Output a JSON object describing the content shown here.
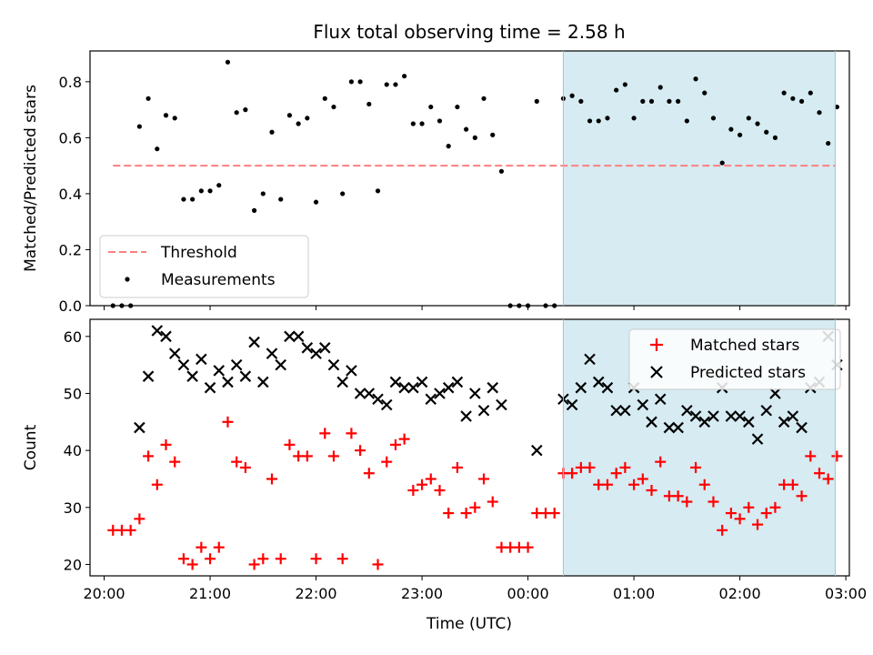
{
  "chart_data": [
    {
      "type": "scatter",
      "title": "Flux total observing time = 2.58 h",
      "xlabel": "",
      "ylabel": "Matched/Predicted stars",
      "ylim": [
        0,
        0.91
      ],
      "yticks": [
        0.0,
        0.2,
        0.4,
        0.6,
        0.8
      ],
      "ytick_labels": [
        "0.0",
        "0.2",
        "0.4",
        "0.6",
        "0.8"
      ],
      "xlim": [
        "19:52",
        "03:02"
      ],
      "shaded_region": {
        "x_start": "00:20",
        "x_end": "02:54",
        "color": "#add8e6"
      },
      "threshold": {
        "name": "Threshold",
        "value": 0.5,
        "x_start": "20:05",
        "x_end": "02:54",
        "color": "#ff7f7f",
        "style": "dashed"
      },
      "legend": {
        "position": "lower left",
        "entries": [
          "Threshold",
          "Measurements"
        ]
      },
      "series": [
        {
          "name": "Measurements",
          "color": "#000000",
          "x": [
            "20:05",
            "20:10",
            "20:15",
            "20:20",
            "20:25",
            "20:30",
            "20:35",
            "20:40",
            "20:45",
            "20:50",
            "20:55",
            "21:00",
            "21:05",
            "21:10",
            "21:15",
            "21:20",
            "21:25",
            "21:30",
            "21:35",
            "21:40",
            "21:45",
            "21:50",
            "21:55",
            "22:00",
            "22:05",
            "22:10",
            "22:15",
            "22:20",
            "22:25",
            "22:30",
            "22:35",
            "22:40",
            "22:45",
            "22:50",
            "22:55",
            "23:00",
            "23:05",
            "23:10",
            "23:15",
            "23:20",
            "23:25",
            "23:30",
            "23:35",
            "23:40",
            "23:45",
            "23:50",
            "23:55",
            "00:00",
            "00:05",
            "00:10",
            "00:15",
            "00:20",
            "00:25",
            "00:30",
            "00:35",
            "00:40",
            "00:45",
            "00:50",
            "00:55",
            "01:00",
            "01:05",
            "01:10",
            "01:15",
            "01:20",
            "01:25",
            "01:30",
            "01:35",
            "01:40",
            "01:45",
            "01:50",
            "01:55",
            "02:00",
            "02:05",
            "02:10",
            "02:15",
            "02:20",
            "02:25",
            "02:30",
            "02:35",
            "02:40",
            "02:45",
            "02:50",
            "02:55"
          ],
          "y": [
            0.0,
            0.0,
            0.0,
            0.64,
            0.74,
            0.56,
            0.68,
            0.67,
            0.38,
            0.38,
            0.41,
            0.41,
            0.43,
            0.87,
            0.69,
            0.7,
            0.34,
            0.4,
            0.62,
            0.38,
            0.68,
            0.65,
            0.67,
            0.37,
            0.74,
            0.71,
            0.4,
            0.8,
            0.8,
            0.72,
            0.41,
            0.79,
            0.79,
            0.82,
            0.65,
            0.65,
            0.71,
            0.66,
            0.57,
            0.71,
            0.63,
            0.6,
            0.74,
            0.61,
            0.48,
            0.0,
            0.0,
            0.0,
            0.73,
            0.0,
            0.0,
            0.74,
            0.75,
            0.73,
            0.66,
            0.66,
            0.67,
            0.77,
            0.79,
            0.67,
            0.73,
            0.73,
            0.78,
            0.73,
            0.73,
            0.66,
            0.81,
            0.76,
            0.67,
            0.51,
            0.63,
            0.61,
            0.67,
            0.65,
            0.62,
            0.6,
            0.76,
            0.74,
            0.73,
            0.76,
            0.69,
            0.58,
            0.71
          ]
        }
      ]
    },
    {
      "type": "scatter",
      "title": "",
      "xlabel": "Time (UTC)",
      "ylabel": "Count",
      "ylim": [
        18,
        63
      ],
      "yticks": [
        20,
        30,
        40,
        50,
        60
      ],
      "ytick_labels": [
        "20",
        "30",
        "40",
        "50",
        "60"
      ],
      "xlim": [
        "19:52",
        "03:02"
      ],
      "xticks": [
        "20:00",
        "21:00",
        "22:00",
        "23:00",
        "00:00",
        "01:00",
        "02:00",
        "03:00"
      ],
      "shaded_region": {
        "x_start": "00:20",
        "x_end": "02:54",
        "color": "#add8e6"
      },
      "legend": {
        "position": "upper right",
        "entries": [
          "Matched stars",
          "Predicted stars"
        ]
      },
      "x": [
        "20:05",
        "20:10",
        "20:15",
        "20:20",
        "20:25",
        "20:30",
        "20:35",
        "20:40",
        "20:45",
        "20:50",
        "20:55",
        "21:00",
        "21:05",
        "21:10",
        "21:15",
        "21:20",
        "21:25",
        "21:30",
        "21:35",
        "21:40",
        "21:45",
        "21:50",
        "21:55",
        "22:00",
        "22:05",
        "22:10",
        "22:15",
        "22:20",
        "22:25",
        "22:30",
        "22:35",
        "22:40",
        "22:45",
        "22:50",
        "22:55",
        "23:00",
        "23:05",
        "23:10",
        "23:15",
        "23:20",
        "23:25",
        "23:30",
        "23:35",
        "23:40",
        "23:45",
        "23:50",
        "23:55",
        "00:00",
        "00:05",
        "00:10",
        "00:15",
        "00:20",
        "00:25",
        "00:30",
        "00:35",
        "00:40",
        "00:45",
        "00:50",
        "00:55",
        "01:00",
        "01:05",
        "01:10",
        "01:15",
        "01:20",
        "01:25",
        "01:30",
        "01:35",
        "01:40",
        "01:45",
        "01:50",
        "01:55",
        "02:00",
        "02:05",
        "02:10",
        "02:15",
        "02:20",
        "02:25",
        "02:30",
        "02:35",
        "02:40",
        "02:45",
        "02:50",
        "02:55"
      ],
      "series": [
        {
          "name": "Matched stars",
          "color": "#ff0000",
          "marker": "+",
          "values": [
            26,
            26,
            26,
            28,
            39,
            34,
            41,
            38,
            21,
            20,
            23,
            21,
            23,
            45,
            38,
            37,
            20,
            21,
            35,
            21,
            41,
            39,
            39,
            21,
            43,
            39,
            21,
            43,
            40,
            36,
            20,
            38,
            41,
            42,
            33,
            34,
            35,
            33,
            29,
            37,
            29,
            30,
            35,
            31,
            23,
            23,
            23,
            23,
            29,
            29,
            29,
            36,
            36,
            37,
            37,
            34,
            34,
            36,
            37,
            34,
            35,
            33,
            38,
            32,
            32,
            31,
            37,
            34,
            31,
            26,
            29,
            28,
            30,
            27,
            29,
            30,
            34,
            34,
            32,
            39,
            36,
            35,
            39
          ]
        },
        {
          "name": "Predicted stars",
          "color": "#000000",
          "marker": "x",
          "values": [
            null,
            null,
            null,
            44,
            53,
            61,
            60,
            57,
            55,
            53,
            56,
            51,
            54,
            52,
            55,
            53,
            59,
            52,
            57,
            55,
            60,
            60,
            58,
            57,
            58,
            55,
            52,
            54,
            50,
            50,
            49,
            48,
            52,
            51,
            51,
            52,
            49,
            50,
            51,
            52,
            46,
            50,
            47,
            51,
            48,
            null,
            null,
            null,
            40,
            null,
            null,
            49,
            48,
            51,
            56,
            52,
            51,
            47,
            47,
            51,
            48,
            45,
            49,
            44,
            44,
            47,
            46,
            45,
            46,
            51,
            46,
            46,
            45,
            42,
            47,
            50,
            45,
            46,
            44,
            51,
            52,
            60,
            55
          ]
        }
      ]
    }
  ]
}
